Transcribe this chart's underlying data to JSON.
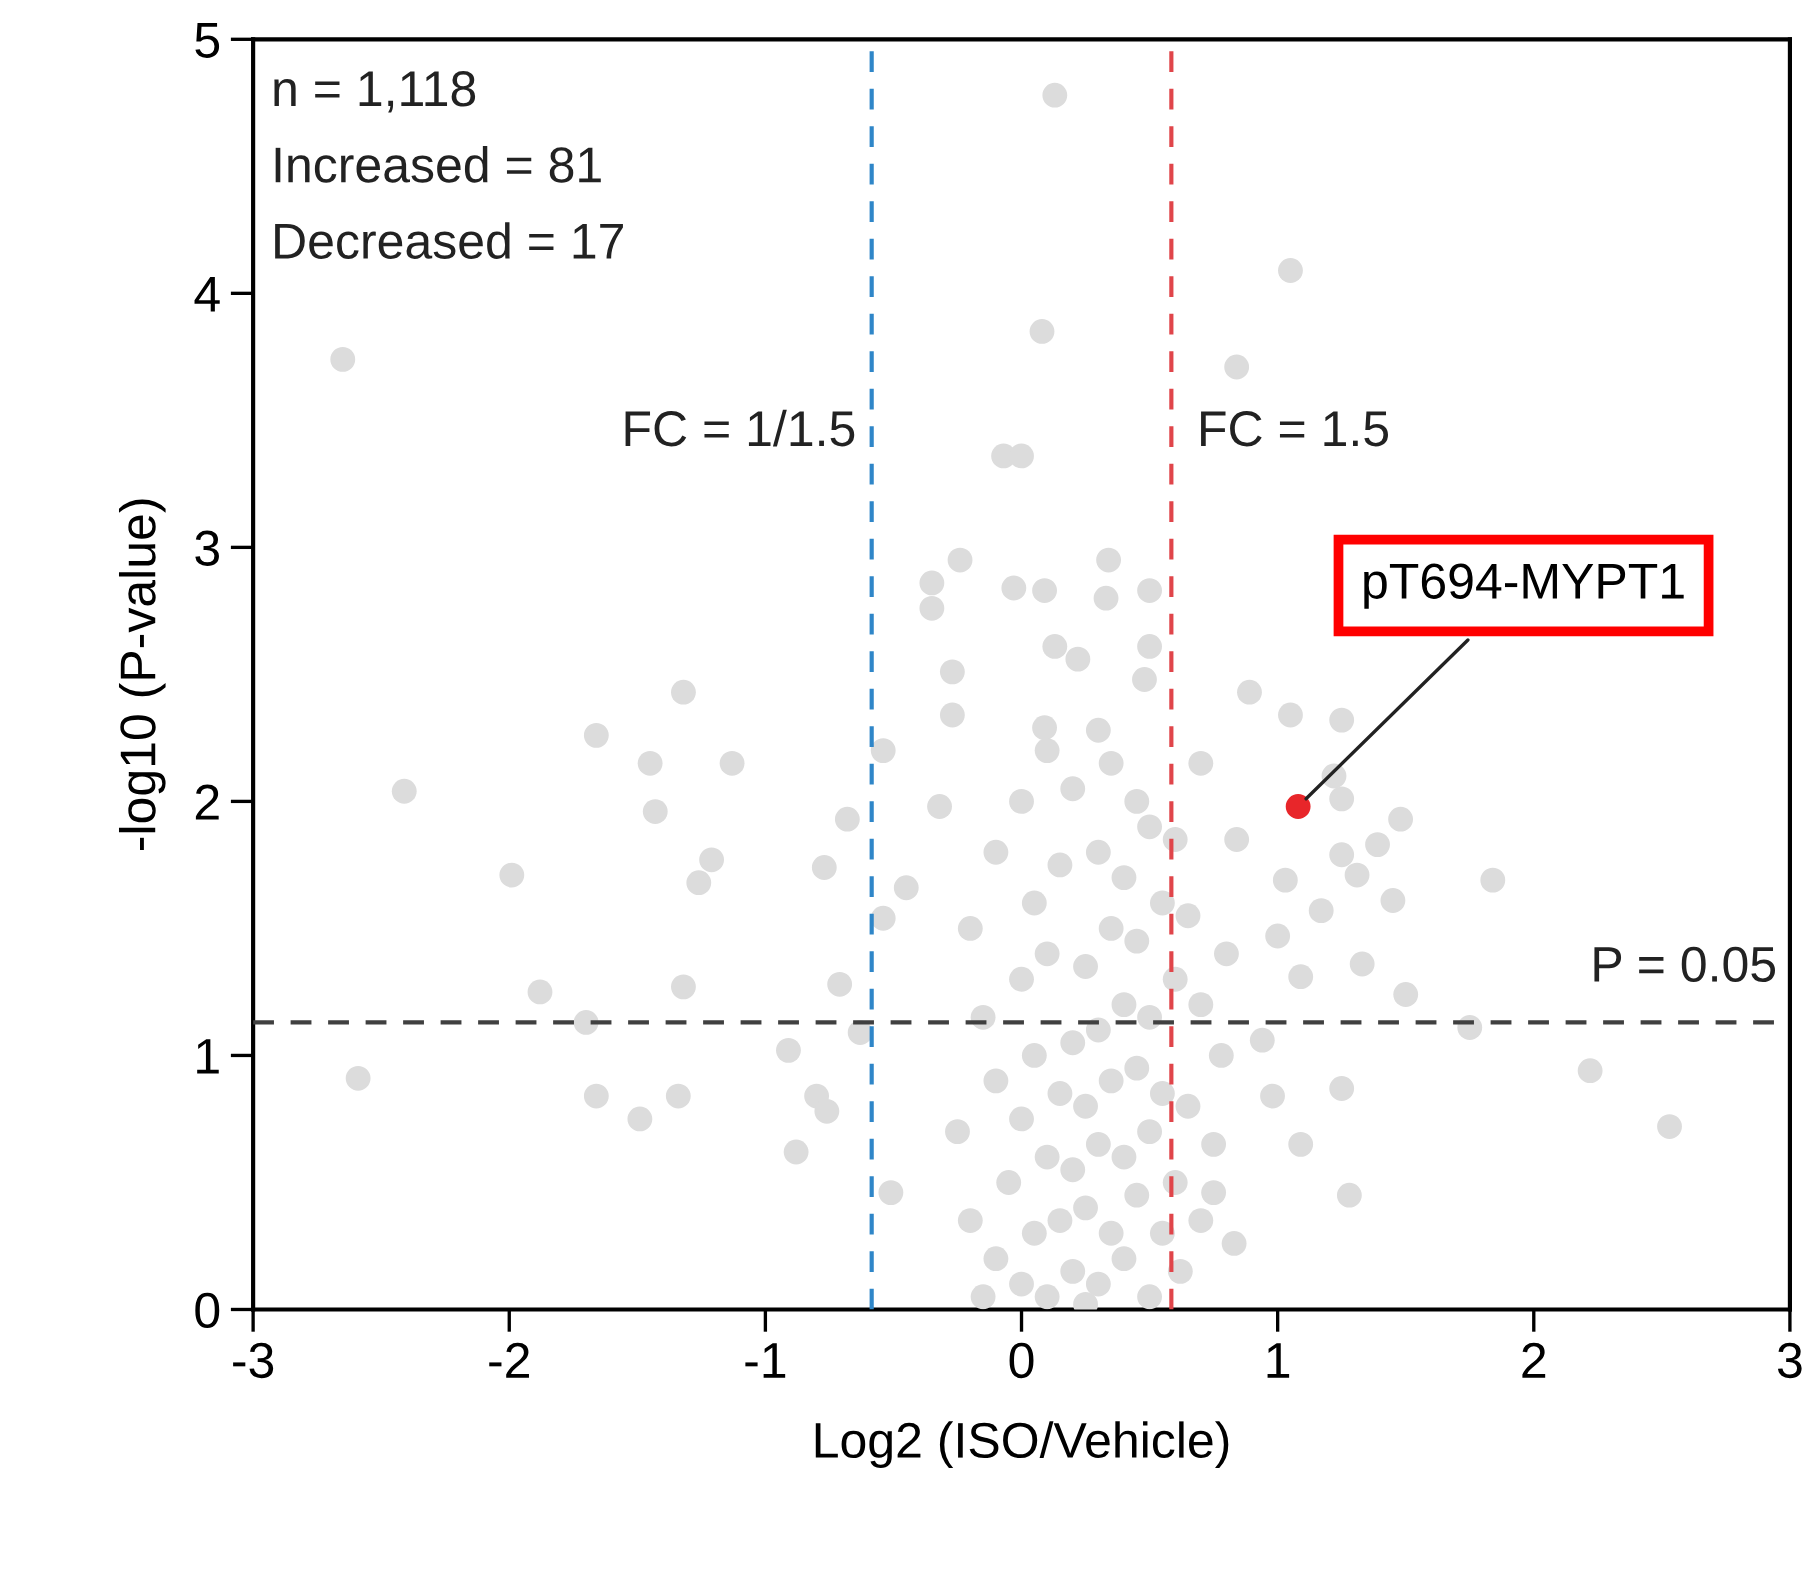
{
  "chart_data": {
    "type": "scatter",
    "xlabel": "Log2 (ISO/Vehicle)",
    "ylabel": "-log10 (P-value)",
    "xlim": [
      -3,
      3
    ],
    "ylim": [
      0,
      5
    ],
    "xticks": [
      -3,
      -2,
      -1,
      0,
      1,
      2,
      3
    ],
    "yticks": [
      0,
      1,
      2,
      3,
      4,
      5
    ],
    "grid": false,
    "legend": false,
    "marker": "circle",
    "series": [
      {
        "color": "#dcdcdc",
        "x": [
          -2.65,
          -2.41,
          -1.99,
          -1.66,
          -1.45,
          -1.43,
          -1.32,
          -1.13,
          -1.21,
          -1.26,
          -0.77,
          -0.68,
          -1.88,
          -1.32,
          -1.7,
          -2.59,
          -1.66,
          -1.49,
          -1.34,
          -0.91,
          -0.8,
          -0.88,
          -0.76,
          -0.71,
          -0.63,
          -0.51,
          -0.54,
          -0.54,
          -0.35,
          -0.24,
          -0.35,
          -0.27,
          -0.27,
          -0.07,
          -0.32,
          -0.45,
          0.13,
          1.05,
          0.08,
          0.84,
          0.0,
          0.34,
          -0.03,
          0.09,
          0.33,
          0.5,
          0.13,
          0.22,
          0.5,
          0.48,
          0.89,
          1.05,
          1.25,
          0.7,
          0.3,
          0.09,
          1.22,
          1.25,
          1.48,
          1.39,
          1.25,
          0.84,
          1.03,
          1.31,
          1.84,
          1.45,
          1.17,
          1.0,
          1.33,
          1.5,
          1.09,
          1.75,
          2.22,
          2.53,
          1.25,
          0.98,
          1.09,
          1.28,
          0.83,
          0.75,
          0.94,
          0.78,
          0.0,
          0.1,
          0.2,
          0.3,
          0.4,
          0.5,
          -0.1,
          0.05,
          0.15,
          0.25,
          0.35,
          0.45,
          0.55,
          -0.05,
          0.1,
          0.2,
          0.3,
          0.4,
          0.5,
          0.6,
          0.0,
          0.15,
          0.25,
          0.35,
          0.45,
          0.55,
          0.65,
          -0.1,
          0.05,
          0.2,
          0.3,
          0.4,
          0.5,
          0.6,
          0.7,
          -0.15,
          0.0,
          0.1,
          0.25,
          0.35,
          0.45,
          0.55,
          0.65,
          -0.2,
          0.05,
          0.15,
          0.3,
          0.4,
          0.5,
          0.6,
          -0.1,
          0.0,
          0.2,
          0.35,
          0.45,
          0.1,
          -0.2,
          0.7,
          0.75,
          0.8,
          -0.25,
          0.62,
          -0.15,
          0.25
        ],
        "values": [
          3.74,
          2.04,
          1.71,
          2.26,
          2.15,
          1.96,
          2.43,
          2.15,
          1.77,
          1.68,
          1.74,
          1.93,
          1.25,
          1.27,
          1.13,
          0.91,
          0.84,
          0.75,
          0.84,
          1.02,
          0.84,
          0.62,
          0.78,
          1.28,
          1.09,
          0.46,
          1.54,
          2.2,
          2.86,
          2.95,
          2.76,
          2.51,
          2.34,
          3.36,
          1.98,
          1.66,
          4.78,
          4.09,
          3.85,
          3.71,
          3.36,
          2.95,
          2.84,
          2.83,
          2.8,
          2.83,
          2.61,
          2.56,
          2.61,
          2.48,
          2.43,
          2.34,
          2.32,
          2.15,
          2.28,
          2.29,
          2.1,
          2.01,
          1.93,
          1.83,
          1.79,
          1.85,
          1.69,
          1.71,
          1.69,
          1.61,
          1.57,
          1.47,
          1.36,
          1.24,
          1.31,
          1.11,
          0.94,
          0.72,
          0.87,
          0.84,
          0.65,
          0.45,
          0.26,
          0.46,
          1.06,
          1.0,
          0.1,
          0.05,
          0.15,
          0.1,
          0.2,
          0.05,
          0.2,
          0.3,
          0.35,
          0.4,
          0.3,
          0.45,
          0.3,
          0.5,
          0.6,
          0.55,
          0.65,
          0.6,
          0.7,
          0.5,
          0.75,
          0.85,
          0.8,
          0.9,
          0.95,
          0.85,
          0.8,
          0.9,
          1.0,
          1.05,
          1.1,
          1.2,
          1.15,
          1.3,
          1.2,
          1.15,
          1.3,
          1.4,
          1.35,
          1.5,
          1.45,
          1.6,
          1.55,
          1.5,
          1.6,
          1.75,
          1.8,
          1.7,
          1.9,
          1.85,
          1.8,
          2.0,
          2.05,
          2.15,
          2.0,
          2.2,
          0.35,
          0.35,
          0.65,
          1.4,
          0.7,
          0.15,
          0.05,
          0.02
        ]
      },
      {
        "color": "#e8262a",
        "x": [
          1.08
        ],
        "values": [
          1.98
        ]
      }
    ],
    "ref_lines": [
      {
        "axis": "x",
        "value": -0.585,
        "color": "#2f86c8",
        "line_style": "dashed"
      },
      {
        "axis": "x",
        "value": 0.585,
        "color": "#e0454a",
        "line_style": "dashed"
      },
      {
        "axis": "y",
        "value": 1.13,
        "color": "#404040",
        "line_style": "dashed"
      }
    ],
    "annotations": [
      "n = 1,118",
      "Increased = 81",
      "Decreased = 17",
      {
        "text": "pT694-MYPT1",
        "x": 1.08,
        "y": 1.98
      },
      {
        "text": "P = 0.05",
        "x": 2.95,
        "y": 1.13
      },
      {
        "text": "FC = 1/1.5",
        "x": -0.585,
        "y": 3.45
      },
      {
        "text": "FC = 1.5",
        "x": 0.585,
        "y": 3.45
      }
    ]
  }
}
